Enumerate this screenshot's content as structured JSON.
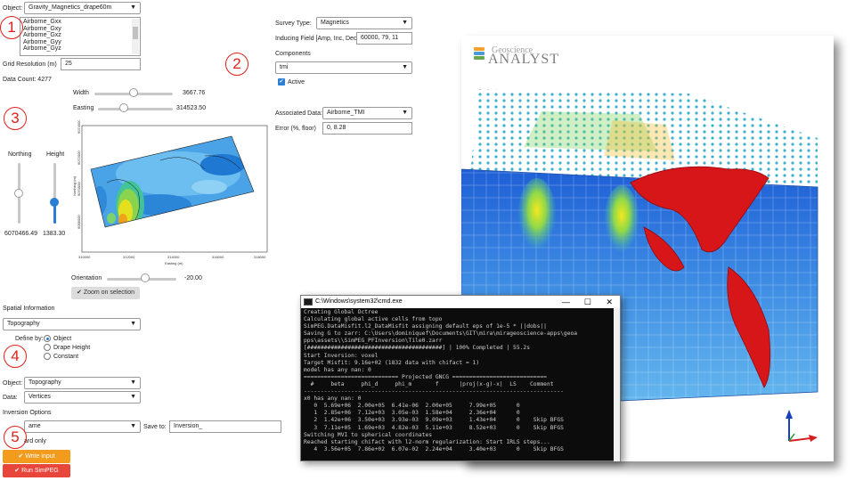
{
  "object": {
    "label": "Object:",
    "value": "Gravity_Magnetics_drape60m"
  },
  "channels": [
    "Airborne_Gxx",
    "Airborne_Gxy",
    "Airborne_Gxz",
    "Airborne_Gyy",
    "Airborne_Gyz"
  ],
  "grid": {
    "label": "Grid Resolution (m)",
    "value": "25"
  },
  "data_count": "Data Count: 4277",
  "width": {
    "label": "Width",
    "value": "3667.76",
    "fraction": 0.5
  },
  "easting": {
    "label": "Easting",
    "value": "314523.50",
    "fraction": 0.35
  },
  "northing": {
    "label": "Northing",
    "value": "6070466.49",
    "fraction": 0.5
  },
  "height": {
    "label": "Height",
    "value": "1383.30",
    "fraction": 0.35
  },
  "orientation": {
    "label": "Orientation",
    "value": "-20.00",
    "fraction": 0.55
  },
  "zoom_button": "Zoom on selection",
  "map": {
    "y_axis_label": "Northing (m)",
    "x_axis_label": "Easting (m)",
    "y_ticks": [
      "6074000",
      "6072000",
      "6070000",
      "6068000"
    ],
    "x_ticks": [
      "310000",
      "312000",
      "314000",
      "316000",
      "318000"
    ]
  },
  "survey": {
    "type_label": "Survey Type:",
    "type_value": "Magnetics",
    "inducing_label": "Inducing Field [Amp, Inc, Dec]",
    "inducing_value": "60000, 79, 11",
    "components_label": "Components",
    "components_value": "tmi",
    "active_label": "Active",
    "assoc_label": "Associated Data:",
    "assoc_value": "Airborne_TMI",
    "error_label": "Error (%, floor)",
    "error_value": "0, 8.28"
  },
  "spatial": {
    "title": "Spatial Information",
    "value": "Topography",
    "define_label": "Define by:",
    "options": [
      "Object",
      "Drape Height",
      "Constant"
    ],
    "object_label": "Object:",
    "object_value": "Topography",
    "data_label": "Data:",
    "data_value": "Vertices"
  },
  "inversion": {
    "title": "Inversion Options",
    "name_value": "ame",
    "save_label": "Save to:",
    "save_value": "Inversion_",
    "forward_label": "ard only",
    "write_button": "Write input",
    "run_button": "Run SimPEG"
  },
  "markers": [
    "1",
    "2",
    "3",
    "4",
    "5"
  ],
  "viewer": {
    "brand_top": "Geoscience",
    "brand_bottom": "ANALYST"
  },
  "cmd": {
    "title": "C:\\Windows\\system32\\cmd.exe",
    "lines": [
      "Creating Global Octree",
      "Calculating global active cells from topo",
      "SimPEG.DataMisfit.l2_DataMisfit assigning default eps of 1e-5 * ||dobs||",
      "Saving G to zarr: C:\\Users\\dominiquef\\Documents\\GIT\\mira\\mirageoscience-apps\\geoa",
      "pps\\assets\\\\SimPEG_PFInversion\\Tile0.zarr",
      "[########################################] | 100% Completed | 55.2s",
      "Start Inversion: voxel",
      "Target Misfit: 9.16e+02 (1832 data with chifact = 1)",
      "model has any nan: 0",
      "============================ Projected GNCG ============================",
      "  #     beta     phi_d     phi_m       f      |proj(x-g)-x|  LS    Comment",
      "-----------------------------------------------------------------------------",
      "x0 has any nan: 0",
      "   0  5.69e+06  2.00e+05  6.41e-06  2.00e+05     7.99e+05      0",
      "   1  2.85e+06  7.12e+03  3.05e-03  1.58e+04     2.36e+04      0",
      "   2  1.42e+06  3.50e+03  3.93e-03  9.09e+03     1.43e+04      0    Skip BFGS",
      "   3  7.11e+05  1.69e+03  4.82e-03  5.11e+03     8.52e+03      0    Skip BFGS",
      "Switching MVI to spherical coordinates",
      "Reached starting chifact with l2-norm regularization: Start IRLS steps...",
      "   4  3.56e+05  7.86e+02  6.07e-02  2.24e+04     3.40e+03      0    Skip BFGS"
    ]
  },
  "colors": {
    "accent_red": "#e0201b",
    "write_orange": "#f29b1d",
    "run_red": "#e9463b"
  }
}
